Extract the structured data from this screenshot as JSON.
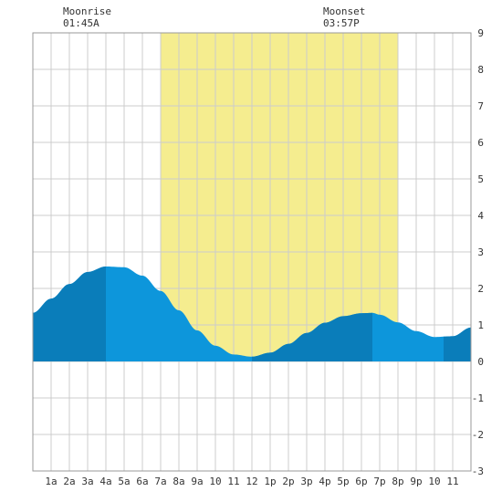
{
  "moonrise": {
    "label": "Moonrise",
    "time": "01:45A"
  },
  "moonset": {
    "label": "Moonset",
    "time": "03:57P"
  },
  "chart_data": {
    "type": "area",
    "title": "",
    "xlabel": "",
    "ylabel": "",
    "x_tick_labels": [
      "1a",
      "2a",
      "3a",
      "4a",
      "5a",
      "6a",
      "7a",
      "8a",
      "9a",
      "10",
      "11",
      "12",
      "1p",
      "2p",
      "3p",
      "4p",
      "5p",
      "6p",
      "7p",
      "8p",
      "9p",
      "10",
      "11"
    ],
    "y_tick_labels": [
      "-3",
      "-2",
      "-1",
      "0",
      "1",
      "2",
      "3",
      "4",
      "5",
      "6",
      "7",
      "8",
      "9"
    ],
    "xlim": [
      0,
      24
    ],
    "ylim": [
      -3,
      9
    ],
    "grid": true,
    "daylight": {
      "start_hour": 7.0,
      "end_hour": 20.0,
      "color": "#f5ed8f"
    },
    "colors": {
      "tide": "#0d96db",
      "tide_dark": "#0a7dba",
      "grid": "#cccccc"
    },
    "dark_bands": [
      [
        0,
        4
      ],
      [
        12,
        18.6
      ],
      [
        22.5,
        24
      ]
    ],
    "tide_points": {
      "x": [
        0,
        1,
        2,
        3,
        4,
        5,
        6,
        7,
        8,
        9,
        10,
        11,
        12,
        13,
        14,
        15,
        16,
        17,
        18,
        18.6,
        19,
        20,
        21,
        22,
        23,
        24
      ],
      "y": [
        1.33,
        1.72,
        2.12,
        2.45,
        2.6,
        2.58,
        2.35,
        1.93,
        1.4,
        0.85,
        0.43,
        0.19,
        0.13,
        0.24,
        0.48,
        0.78,
        1.06,
        1.24,
        1.32,
        1.33,
        1.28,
        1.07,
        0.83,
        0.67,
        0.69,
        0.93
      ]
    }
  }
}
